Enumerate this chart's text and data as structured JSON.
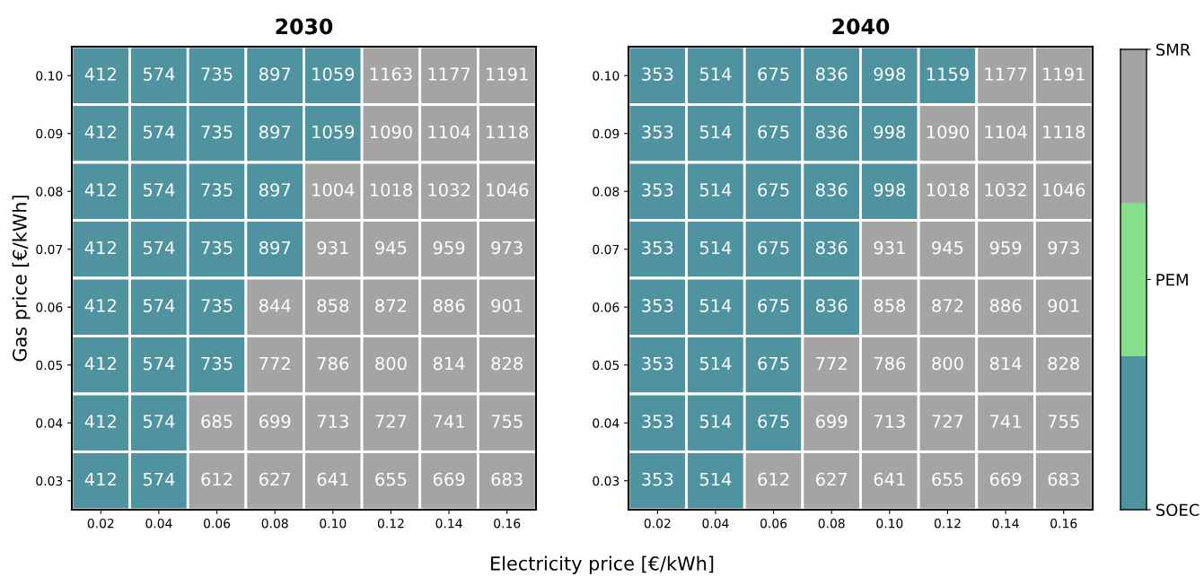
{
  "chart_data": [
    {
      "type": "heatmap",
      "title": "2030",
      "xlabel": "Electricity price [€/kWh]",
      "ylabel": "Gas price [€/kWh]",
      "data_labels": true,
      "categories": [
        "0.02",
        "0.04",
        "0.06",
        "0.08",
        "0.10",
        "0.12",
        "0.14",
        "0.16"
      ],
      "y_categories": [
        "0.10",
        "0.09",
        "0.08",
        "0.07",
        "0.06",
        "0.05",
        "0.04",
        "0.03"
      ],
      "cells": [
        [
          412,
          574,
          735,
          897,
          1059,
          1163,
          1177,
          1191
        ],
        [
          412,
          574,
          735,
          897,
          1059,
          1090,
          1104,
          1118
        ],
        [
          412,
          574,
          735,
          897,
          1004,
          1018,
          1032,
          1046
        ],
        [
          412,
          574,
          735,
          897,
          931,
          945,
          959,
          973
        ],
        [
          412,
          574,
          735,
          844,
          858,
          872,
          886,
          901
        ],
        [
          412,
          574,
          735,
          772,
          786,
          800,
          814,
          828
        ],
        [
          412,
          574,
          685,
          699,
          713,
          727,
          741,
          755
        ],
        [
          412,
          574,
          612,
          627,
          641,
          655,
          669,
          683
        ]
      ],
      "colors": [
        [
          "#4f93a0",
          "#4f93a0",
          "#4f93a0",
          "#4f93a0",
          "#4f93a0",
          "#a4a4a4",
          "#a4a4a4",
          "#a4a4a4"
        ],
        [
          "#4f93a0",
          "#4f93a0",
          "#4f93a0",
          "#4f93a0",
          "#4f93a0",
          "#a4a4a4",
          "#a4a4a4",
          "#a4a4a4"
        ],
        [
          "#4f93a0",
          "#4f93a0",
          "#4f93a0",
          "#4f93a0",
          "#a4a4a4",
          "#a4a4a4",
          "#a4a4a4",
          "#a4a4a4"
        ],
        [
          "#4f93a0",
          "#4f93a0",
          "#4f93a0",
          "#4f93a0",
          "#a4a4a4",
          "#a4a4a4",
          "#a4a4a4",
          "#a4a4a4"
        ],
        [
          "#4f93a0",
          "#4f93a0",
          "#4f93a0",
          "#a4a4a4",
          "#a4a4a4",
          "#a4a4a4",
          "#a4a4a4",
          "#a4a4a4"
        ],
        [
          "#4f93a0",
          "#4f93a0",
          "#4f93a0",
          "#a4a4a4",
          "#a4a4a4",
          "#a4a4a4",
          "#a4a4a4",
          "#a4a4a4"
        ],
        [
          "#4f93a0",
          "#4f93a0",
          "#a4a4a4",
          "#a4a4a4",
          "#a4a4a4",
          "#a4a4a4",
          "#a4a4a4",
          "#a4a4a4"
        ],
        [
          "#4f93a0",
          "#4f93a0",
          "#a4a4a4",
          "#a4a4a4",
          "#a4a4a4",
          "#a4a4a4",
          "#a4a4a4",
          "#a4a4a4"
        ]
      ]
    },
    {
      "type": "heatmap",
      "title": "2040",
      "data_labels": true,
      "categories": [
        "0.02",
        "0.04",
        "0.06",
        "0.08",
        "0.10",
        "0.12",
        "0.14",
        "0.16"
      ],
      "y_categories": [
        "0.10",
        "0.09",
        "0.08",
        "0.07",
        "0.06",
        "0.05",
        "0.04",
        "0.03"
      ],
      "cells": [
        [
          353,
          514,
          675,
          836,
          998,
          1159,
          1177,
          1191
        ],
        [
          353,
          514,
          675,
          836,
          998,
          1090,
          1104,
          1118
        ],
        [
          353,
          514,
          675,
          836,
          998,
          1018,
          1032,
          1046
        ],
        [
          353,
          514,
          675,
          836,
          931,
          945,
          959,
          973
        ],
        [
          353,
          514,
          675,
          836,
          858,
          872,
          886,
          901
        ],
        [
          353,
          514,
          675,
          772,
          786,
          800,
          814,
          828
        ],
        [
          353,
          514,
          675,
          699,
          713,
          727,
          741,
          755
        ],
        [
          353,
          514,
          612,
          627,
          641,
          655,
          669,
          683
        ]
      ],
      "colors": [
        [
          "#4f93a0",
          "#4f93a0",
          "#4f93a0",
          "#4f93a0",
          "#4f93a0",
          "#4f93a0",
          "#a4a4a4",
          "#a4a4a4"
        ],
        [
          "#4f93a0",
          "#4f93a0",
          "#4f93a0",
          "#4f93a0",
          "#4f93a0",
          "#a4a4a4",
          "#a4a4a4",
          "#a4a4a4"
        ],
        [
          "#4f93a0",
          "#4f93a0",
          "#4f93a0",
          "#4f93a0",
          "#4f93a0",
          "#a4a4a4",
          "#a4a4a4",
          "#a4a4a4"
        ],
        [
          "#4f93a0",
          "#4f93a0",
          "#4f93a0",
          "#4f93a0",
          "#a4a4a4",
          "#a4a4a4",
          "#a4a4a4",
          "#a4a4a4"
        ],
        [
          "#4f93a0",
          "#4f93a0",
          "#4f93a0",
          "#4f93a0",
          "#a4a4a4",
          "#a4a4a4",
          "#a4a4a4",
          "#a4a4a4"
        ],
        [
          "#4f93a0",
          "#4f93a0",
          "#4f93a0",
          "#a4a4a4",
          "#a4a4a4",
          "#a4a4a4",
          "#a4a4a4",
          "#a4a4a4"
        ],
        [
          "#4f93a0",
          "#4f93a0",
          "#4f93a0",
          "#a4a4a4",
          "#a4a4a4",
          "#a4a4a4",
          "#a4a4a4",
          "#a4a4a4"
        ],
        [
          "#4f93a0",
          "#4f93a0",
          "#a4a4a4",
          "#a4a4a4",
          "#a4a4a4",
          "#a4a4a4",
          "#a4a4a4",
          "#a4a4a4"
        ]
      ]
    },
    {
      "type": "other",
      "categories": [
        "SMR",
        "PEM",
        "SOEC"
      ],
      "colors": [
        "#a4a4a4",
        "#85e08c",
        "#4f93a0"
      ]
    }
  ]
}
